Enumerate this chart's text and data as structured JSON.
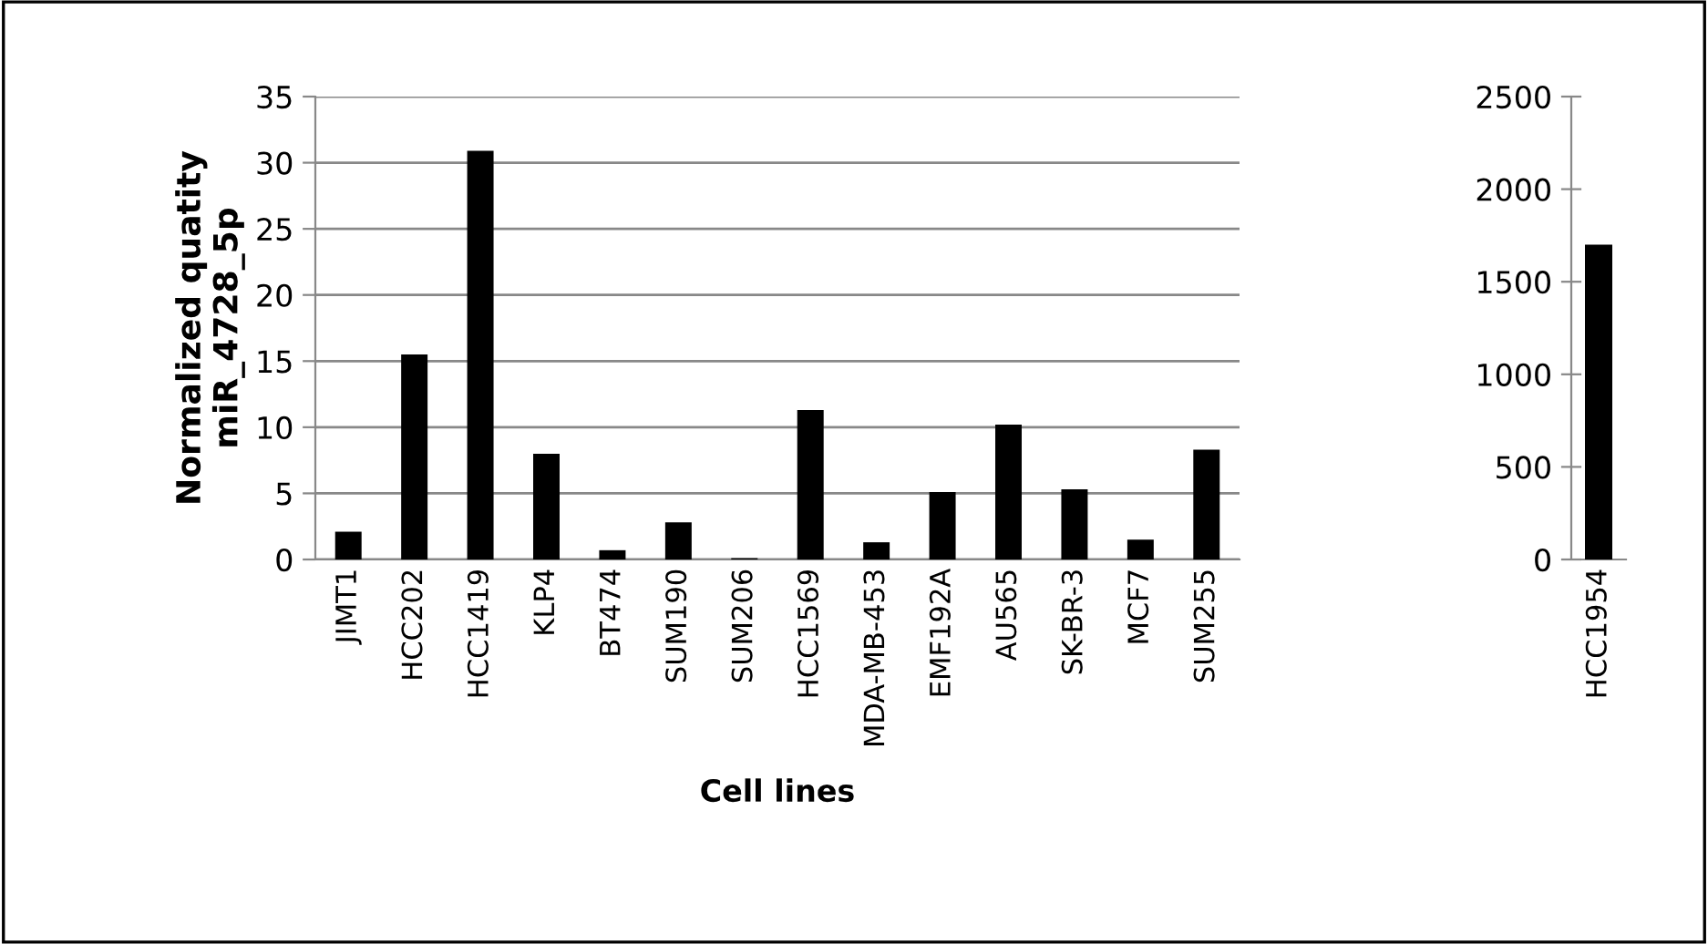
{
  "chart_data": [
    {
      "type": "bar",
      "ylabel": "Normalized quatity\nmiR_4728_5p",
      "xlabel": "Cell lines",
      "categories": [
        "JIMT1",
        "HCC202",
        "HCC1419",
        "KLP4",
        "BT474",
        "SUM190",
        "SUM206",
        "HCC1569",
        "MDA-MB-453",
        "EMF192A",
        "AU565",
        "SK-BR-3",
        "MCF7",
        "SUM255"
      ],
      "values": [
        2.1,
        15.5,
        30.9,
        8.0,
        0.7,
        2.8,
        0.1,
        11.3,
        1.3,
        5.1,
        10.2,
        5.3,
        1.5,
        8.3
      ],
      "color": "#000000",
      "ylim": [
        0,
        35
      ],
      "yticks": [
        0,
        5,
        10,
        15,
        20,
        25,
        30,
        35
      ],
      "grid": "y"
    },
    {
      "type": "bar",
      "categories": [
        "HCC1954"
      ],
      "values": [
        1700
      ],
      "color": "#000000",
      "ylim": [
        0,
        2500
      ],
      "yticks": [
        0,
        500,
        1000,
        1500,
        2000,
        2500
      ],
      "grid": false
    }
  ]
}
